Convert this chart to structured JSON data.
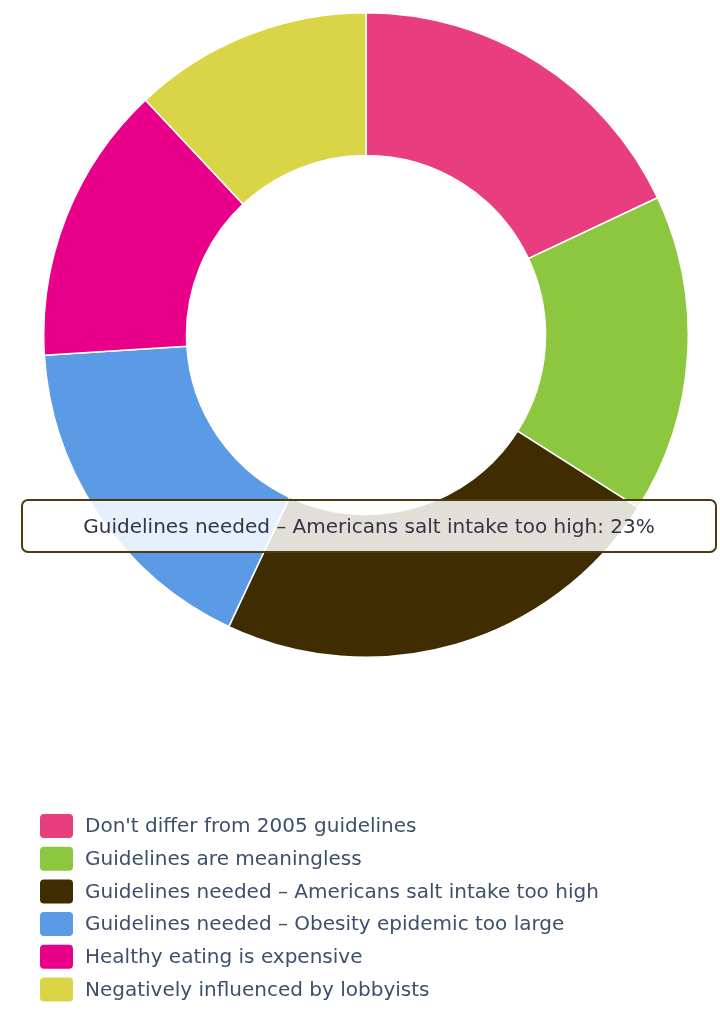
{
  "chart_data": {
    "type": "donut",
    "categories": [
      "Don't differ from 2005 guidelines",
      "Guidelines are meaningless",
      "Guidelines needed – Americans salt intake too high",
      "Guidelines needed – Obesity epidemic too large",
      "Healthy eating is expensive",
      "Negatively influenced by lobbyists"
    ],
    "values": [
      18,
      16,
      23,
      17,
      14,
      12
    ],
    "colors": [
      "#e83e80",
      "#8dc63f",
      "#3f2c00",
      "#5b9be6",
      "#e8008a",
      "#dad447"
    ],
    "legend": "bottom",
    "annotations": [
      "Guidelines needed – Americans salt intake too high: 23%"
    ]
  }
}
